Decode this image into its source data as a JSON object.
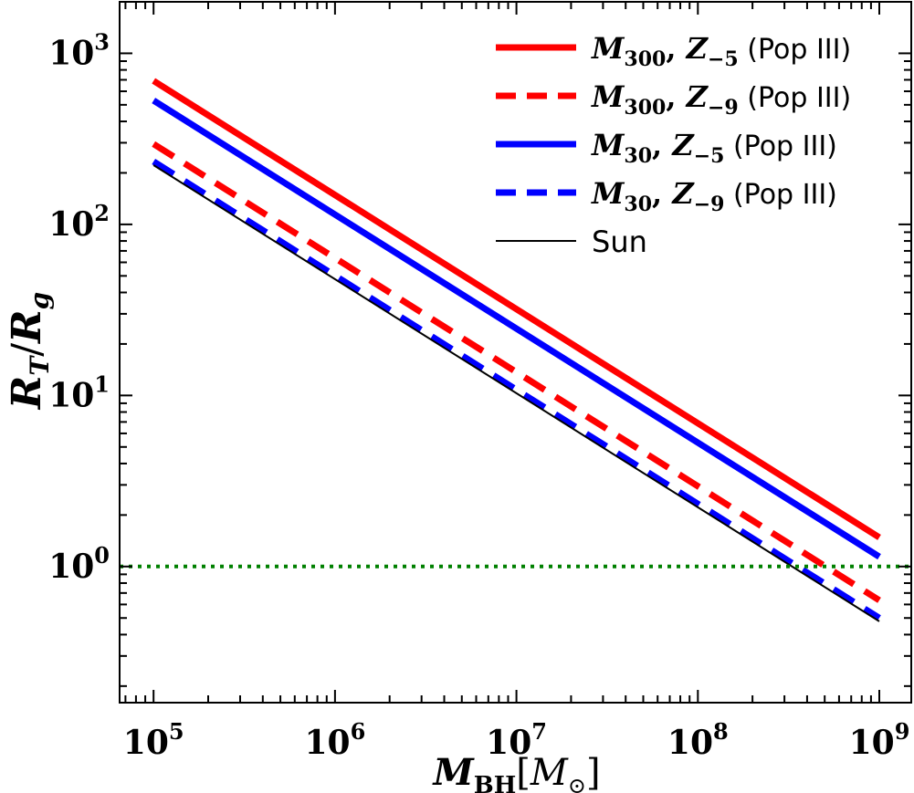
{
  "chart_data": {
    "type": "line",
    "title": "",
    "xscale": "log",
    "yscale": "log",
    "xlabel": {
      "base": "M",
      "sub": "BH",
      "unit_base": "M",
      "unit_sub": "⊙"
    },
    "ylabel": {
      "num": "R",
      "num_sub": "T",
      "den": "R",
      "den_sub": "g"
    },
    "xlim": [
      65000,
      1500000000
    ],
    "ylim": [
      0.16,
      2000
    ],
    "xticks": [
      {
        "value": 100000,
        "base": "10",
        "exp": "5"
      },
      {
        "value": 1000000,
        "base": "10",
        "exp": "6"
      },
      {
        "value": 10000000,
        "base": "10",
        "exp": "7"
      },
      {
        "value": 100000000,
        "base": "10",
        "exp": "8"
      },
      {
        "value": 1000000000,
        "base": "10",
        "exp": "9"
      }
    ],
    "yticks": [
      {
        "value": 1,
        "base": "10",
        "exp": "0"
      },
      {
        "value": 10,
        "base": "10",
        "exp": "1"
      },
      {
        "value": 100,
        "base": "10",
        "exp": "2"
      },
      {
        "value": 1000,
        "base": "10",
        "exp": "3"
      }
    ],
    "series": [
      {
        "name": "M300, Z-5 (Pop III)",
        "label_m": "300",
        "label_z": "−5",
        "suffix": " (Pop III)",
        "color": "#ff0000",
        "dash": "solid",
        "width": "thick",
        "x": [
          100000,
          1000000000
        ],
        "y": [
          690,
          1.48
        ]
      },
      {
        "name": "M300, Z-9 (Pop III)",
        "label_m": "300",
        "label_z": "−9",
        "suffix": " (Pop III)",
        "color": "#ff0000",
        "dash": "dashed",
        "width": "thick",
        "x": [
          100000,
          1000000000
        ],
        "y": [
          295,
          0.635
        ]
      },
      {
        "name": "M30, Z-5 (Pop III)",
        "label_m": "30",
        "label_z": "−5",
        "suffix": " (Pop III)",
        "color": "#0000ff",
        "dash": "solid",
        "width": "thick",
        "x": [
          100000,
          1000000000
        ],
        "y": [
          530,
          1.14
        ]
      },
      {
        "name": "M30, Z-9 (Pop III)",
        "label_m": "30",
        "label_z": "−9",
        "suffix": " (Pop III)",
        "color": "#0000ff",
        "dash": "dashed",
        "width": "thick",
        "x": [
          100000,
          1000000000
        ],
        "y": [
          233,
          0.5
        ]
      },
      {
        "name": "Sun",
        "label_text": "Sun",
        "color": "#000000",
        "dash": "solid",
        "width": "thin",
        "x": [
          100000,
          1000000000
        ],
        "y": [
          222,
          0.478
        ]
      }
    ],
    "reference_line": {
      "y": 1,
      "color": "#008000",
      "style": "dotted"
    },
    "legend": {
      "position": "upper-right",
      "frame": false
    }
  }
}
